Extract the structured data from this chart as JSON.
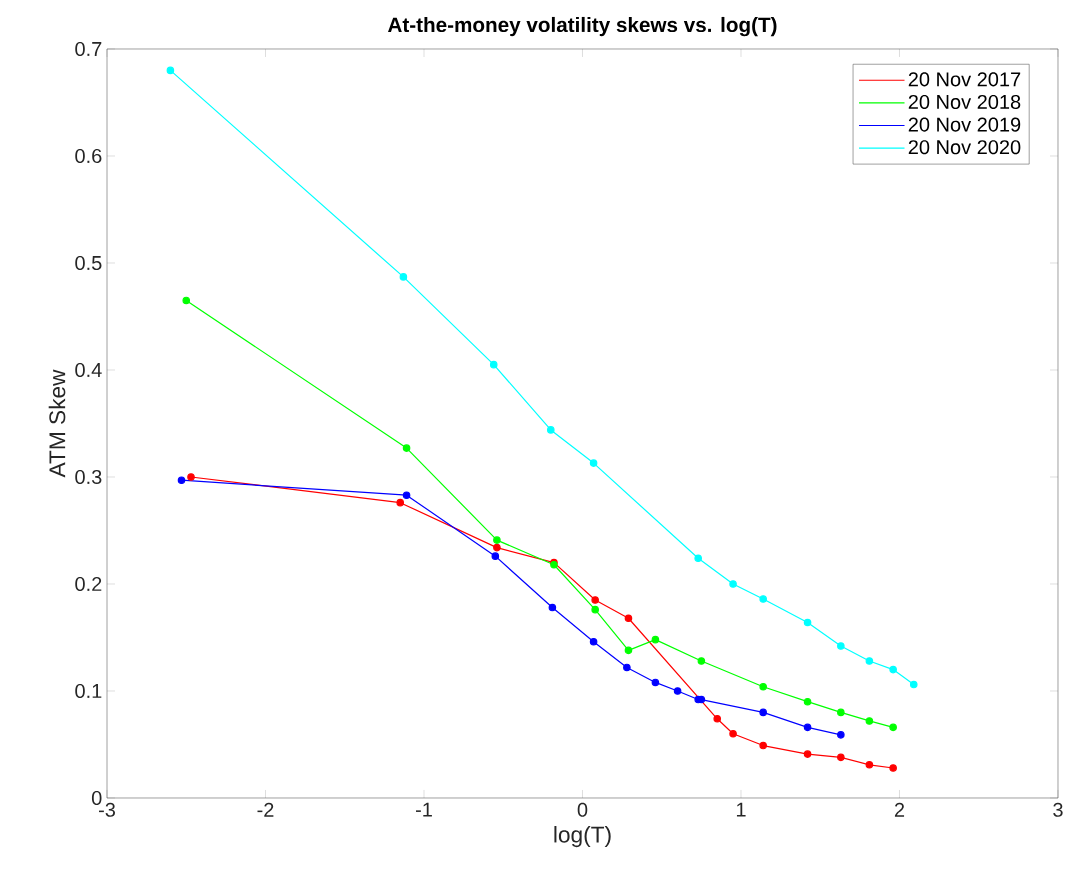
{
  "chart_data": {
    "type": "line",
    "title": "At-the-money volatility skews vs. log(T)",
    "xlabel": "log(T)",
    "ylabel": "ATM Skew",
    "xlim": [
      -3,
      3
    ],
    "xticks": [
      -3,
      -2,
      -1,
      0,
      1,
      2,
      3
    ],
    "ylim": [
      0,
      0.7
    ],
    "yticks": [
      0,
      0.1,
      0.2,
      0.3,
      0.4,
      0.5,
      0.6,
      0.7
    ],
    "grid": false,
    "legend": "top right",
    "marker": "circle",
    "line_style": "solid",
    "series": [
      {
        "name": "20 Nov 2017",
        "color": "#ff0000",
        "x": [
          -2.47,
          -1.15,
          -0.54,
          -0.18,
          0.08,
          0.29,
          0.85,
          0.95,
          1.14,
          1.42,
          1.63,
          1.81,
          1.96
        ],
        "values": [
          0.3,
          0.276,
          0.234,
          0.22,
          0.185,
          0.168,
          0.074,
          0.06,
          0.049,
          0.041,
          0.038,
          0.031,
          0.028
        ]
      },
      {
        "name": "20 Nov 2018",
        "color": "#00ff00",
        "x": [
          -2.5,
          -1.11,
          -0.54,
          -0.18,
          0.08,
          0.29,
          0.46,
          0.75,
          1.14,
          1.42,
          1.63,
          1.81,
          1.96
        ],
        "values": [
          0.465,
          0.327,
          0.241,
          0.218,
          0.176,
          0.138,
          0.148,
          0.128,
          0.104,
          0.09,
          0.08,
          0.072,
          0.066
        ]
      },
      {
        "name": "20 Nov 2019",
        "color": "#0000ff",
        "x": [
          -2.53,
          -1.11,
          -0.55,
          -0.19,
          0.07,
          0.28,
          0.46,
          0.6,
          0.73,
          0.75,
          1.14,
          1.42,
          1.63
        ],
        "values": [
          0.297,
          0.283,
          0.226,
          0.178,
          0.146,
          0.122,
          0.108,
          0.1,
          0.092,
          0.092,
          0.08,
          0.066,
          0.059
        ]
      },
      {
        "name": "20 Nov 2020",
        "color": "#00ffff",
        "x": [
          -2.6,
          -1.13,
          -0.56,
          -0.2,
          0.07,
          0.73,
          0.95,
          1.14,
          1.42,
          1.63,
          1.81,
          1.96,
          2.09
        ],
        "values": [
          0.68,
          0.487,
          0.405,
          0.344,
          0.313,
          0.224,
          0.2,
          0.186,
          0.164,
          0.142,
          0.128,
          0.12,
          0.106
        ]
      }
    ]
  }
}
